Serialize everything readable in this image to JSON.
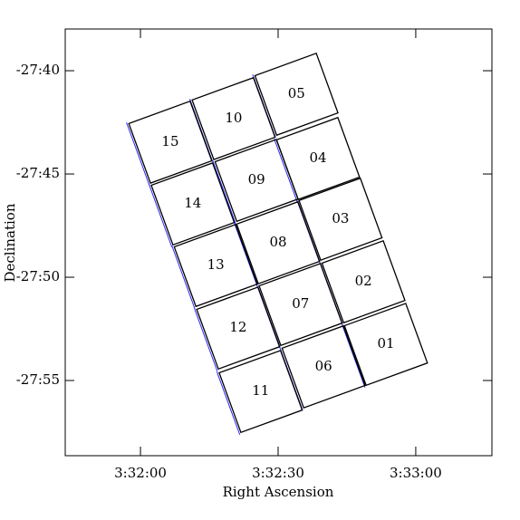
{
  "chart_data": {
    "type": "footprint",
    "x_label": "Right Ascension",
    "y_label": "Declination",
    "xlim": [
      12703.6,
      12796.6
    ],
    "ylim": [
      -1678.64,
      -1657.98
    ],
    "xticks": [
      {
        "value": 12720,
        "label": "3:32:00"
      },
      {
        "value": 12750,
        "label": "3:32:30"
      },
      {
        "value": 12780,
        "label": "3:33:00"
      }
    ],
    "yticks": [
      {
        "value": -1660,
        "label": "-27:40"
      },
      {
        "value": -1665,
        "label": "-27:45"
      },
      {
        "value": -1670,
        "label": "-27:50"
      },
      {
        "value": -1675,
        "label": "-27:55"
      }
    ],
    "color": "#000000",
    "tiles": [
      {
        "label": "01",
        "x": 12773.5,
        "y": -1673.25
      },
      {
        "label": "02",
        "x": 12768.6,
        "y": -1670.22
      },
      {
        "label": "03",
        "x": 12763.6,
        "y": -1667.19
      },
      {
        "label": "04",
        "x": 12758.7,
        "y": -1664.25
      },
      {
        "label": "05",
        "x": 12754.0,
        "y": -1661.14
      },
      {
        "label": "06",
        "x": 12759.9,
        "y": -1674.34
      },
      {
        "label": "07",
        "x": 12754.9,
        "y": -1671.32
      },
      {
        "label": "08",
        "x": 12750.0,
        "y": -1668.33
      },
      {
        "label": "09",
        "x": 12745.3,
        "y": -1665.31
      },
      {
        "label": "10",
        "x": 12740.3,
        "y": -1662.32
      },
      {
        "label": "11",
        "x": 12746.2,
        "y": -1675.53
      },
      {
        "label": "12",
        "x": 12741.3,
        "y": -1672.46
      },
      {
        "label": "13",
        "x": 12736.4,
        "y": -1669.43
      },
      {
        "label": "14",
        "x": 12731.4,
        "y": -1666.45
      },
      {
        "label": "15",
        "x": 12726.5,
        "y": -1663.46
      }
    ]
  }
}
